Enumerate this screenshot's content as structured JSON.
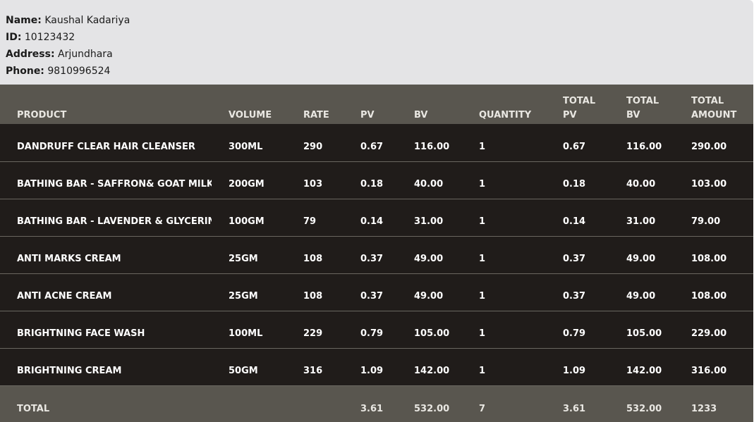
{
  "customer": {
    "name_label": "Name:",
    "name": "Kaushal Kadariya",
    "id_label": "ID:",
    "id": "10123432",
    "address_label": "Address:",
    "address": "Arjundhara",
    "phone_label": "Phone:",
    "phone": "9810996524"
  },
  "table": {
    "headers": [
      "PRODUCT",
      "VOLUME",
      "RATE",
      "PV",
      "BV",
      "QUANTITY",
      "TOTAL PV",
      "TOTAL BV",
      "TOTAL AMOUNT"
    ],
    "rows": [
      [
        "DANDRUFF CLEAR HAIR CLEANSER",
        "300ML",
        "290",
        "0.67",
        "116.00",
        "1",
        "0.67",
        "116.00",
        "290.00"
      ],
      [
        "BATHING BAR - SAFFRON& GOAT MILK",
        "200GM",
        "103",
        "0.18",
        "40.00",
        "1",
        "0.18",
        "40.00",
        "103.00"
      ],
      [
        "BATHING BAR - LAVENDER & GLYCERIN",
        "100GM",
        "79",
        "0.14",
        "31.00",
        "1",
        "0.14",
        "31.00",
        "79.00"
      ],
      [
        "ANTI MARKS CREAM",
        "25GM",
        "108",
        "0.37",
        "49.00",
        "1",
        "0.37",
        "49.00",
        "108.00"
      ],
      [
        "ANTI ACNE CREAM",
        "25GM",
        "108",
        "0.37",
        "49.00",
        "1",
        "0.37",
        "49.00",
        "108.00"
      ],
      [
        "BRIGHTNING FACE WASH",
        "100ML",
        "229",
        "0.79",
        "105.00",
        "1",
        "0.79",
        "105.00",
        "229.00"
      ],
      [
        "BRIGHTNING CREAM",
        "50GM",
        "316",
        "1.09",
        "142.00",
        "1",
        "1.09",
        "142.00",
        "316.00"
      ]
    ],
    "total": [
      "TOTAL",
      "",
      "",
      "3.61",
      "532.00",
      "7",
      "3.61",
      "532.00",
      "1233"
    ]
  }
}
